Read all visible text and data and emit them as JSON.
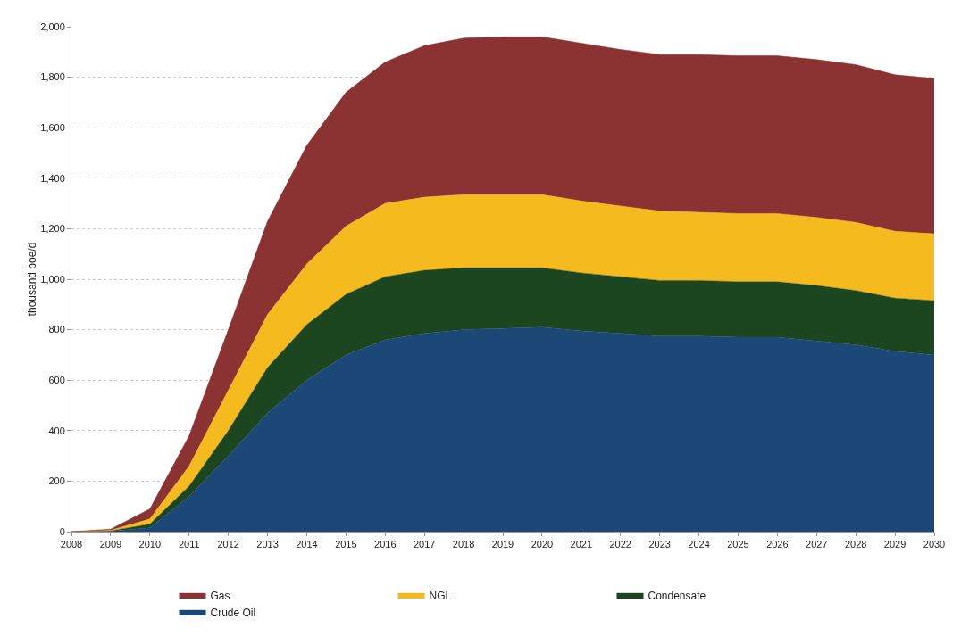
{
  "chart_data": {
    "type": "area",
    "stacked": true,
    "ylabel": "thousand boe/d",
    "categories": [
      "2008",
      "2009",
      "2010",
      "2011",
      "2012",
      "2013",
      "2014",
      "2015",
      "2016",
      "2017",
      "2018",
      "2019",
      "2020",
      "2021",
      "2022",
      "2023",
      "2024",
      "2025",
      "2026",
      "2027",
      "2028",
      "2029",
      "2030"
    ],
    "series": [
      {
        "name": "Crude Oil",
        "color": "#1c4878",
        "values": [
          0,
          2,
          15,
          140,
          300,
          470,
          600,
          700,
          760,
          785,
          800,
          805,
          810,
          795,
          785,
          775,
          775,
          770,
          770,
          755,
          740,
          715,
          700
        ]
      },
      {
        "name": "Condensate",
        "color": "#1b4620",
        "values": [
          0,
          1,
          15,
          40,
          100,
          180,
          220,
          240,
          250,
          250,
          245,
          240,
          235,
          230,
          225,
          220,
          220,
          220,
          220,
          220,
          215,
          210,
          215
        ]
      },
      {
        "name": "NGL",
        "color": "#f5bb1e",
        "values": [
          0,
          2,
          20,
          80,
          160,
          210,
          240,
          270,
          290,
          290,
          290,
          290,
          290,
          285,
          280,
          275,
          270,
          270,
          270,
          270,
          270,
          265,
          265
        ]
      },
      {
        "name": "Gas",
        "color": "#8b3232",
        "values": [
          0,
          5,
          40,
          120,
          240,
          370,
          470,
          530,
          560,
          600,
          620,
          625,
          625,
          625,
          620,
          620,
          625,
          625,
          625,
          625,
          625,
          620,
          615
        ]
      }
    ],
    "ylim": [
      0,
      2000
    ],
    "yticks": [
      0,
      200,
      400,
      600,
      800,
      {
        "value": 1000,
        "label": "1,000"
      },
      {
        "value": 1200,
        "label": "1,200"
      },
      {
        "value": 1400,
        "label": "1,400"
      },
      {
        "value": 1600,
        "label": "1,600"
      },
      {
        "value": 1800,
        "label": "1,800"
      },
      {
        "value": 2000,
        "label": "2,000"
      }
    ],
    "grid": "y",
    "legend": "bottom"
  }
}
